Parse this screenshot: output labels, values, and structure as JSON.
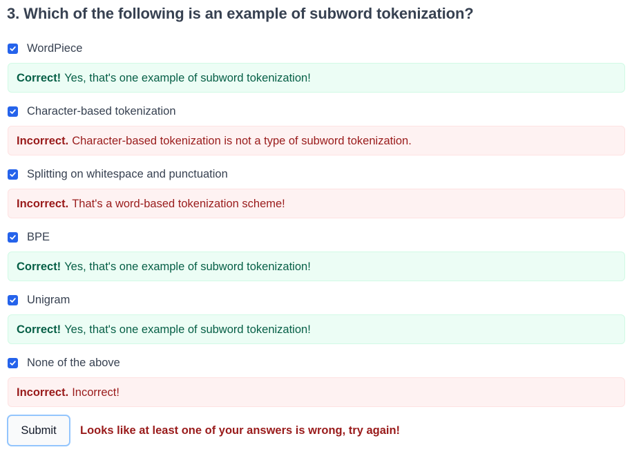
{
  "question": "3. Which of the following is an example of subword tokenization?",
  "colors": {
    "checkbox": "#2563eb",
    "correct_bg": "#ecfdf5",
    "correct_text": "#065f46",
    "incorrect_bg": "#fef2f2",
    "incorrect_text": "#991b1b",
    "submit_border": "#93c5fd"
  },
  "options": [
    {
      "label": "WordPiece",
      "checked": true,
      "feedback": {
        "status": "correct",
        "verdict": "Correct!",
        "message": "Yes, that's one example of subword tokenization!"
      }
    },
    {
      "label": "Character-based tokenization",
      "checked": true,
      "feedback": {
        "status": "incorrect",
        "verdict": "Incorrect.",
        "message": "Character-based tokenization is not a type of subword tokenization."
      }
    },
    {
      "label": "Splitting on whitespace and punctuation",
      "checked": true,
      "feedback": {
        "status": "incorrect",
        "verdict": "Incorrect.",
        "message": "That's a word-based tokenization scheme!"
      }
    },
    {
      "label": "BPE",
      "checked": true,
      "feedback": {
        "status": "correct",
        "verdict": "Correct!",
        "message": "Yes, that's one example of subword tokenization!"
      }
    },
    {
      "label": "Unigram",
      "checked": true,
      "feedback": {
        "status": "correct",
        "verdict": "Correct!",
        "message": "Yes, that's one example of subword tokenization!"
      }
    },
    {
      "label": "None of the above",
      "checked": true,
      "feedback": {
        "status": "incorrect",
        "verdict": "Incorrect.",
        "message": "Incorrect!"
      }
    }
  ],
  "submit_label": "Submit",
  "result_message": "Looks like at least one of your answers is wrong, try again!"
}
